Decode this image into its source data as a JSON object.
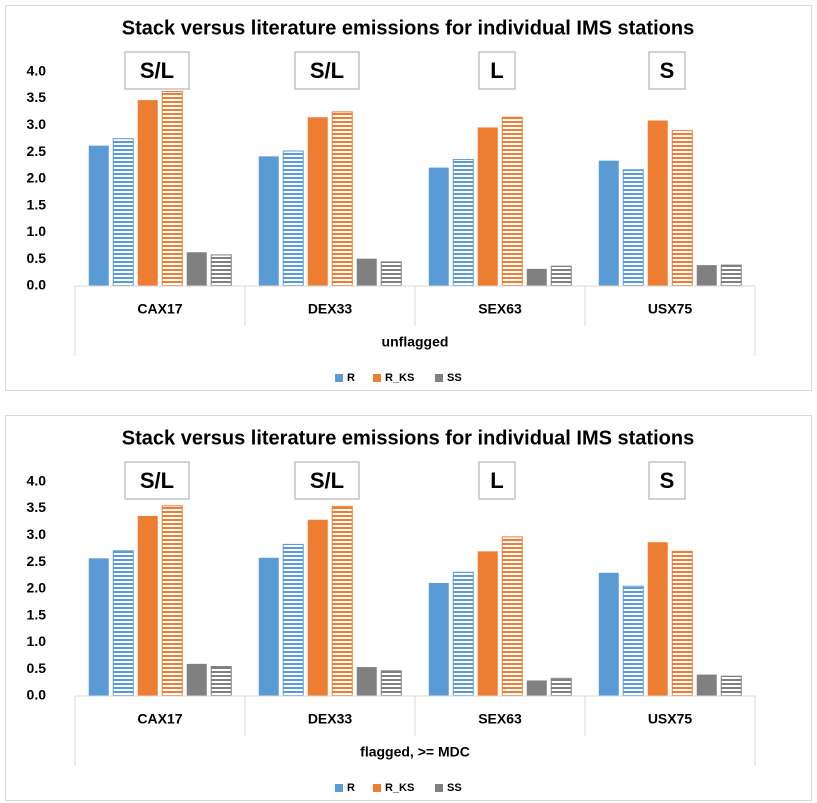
{
  "chart_data": [
    {
      "type": "bar",
      "title": "Stack versus literature emissions for individual IMS stations",
      "categories": [
        "CAX17",
        "DEX33",
        "SEX63",
        "USX75"
      ],
      "group_label": "unflagged",
      "series": [
        {
          "name": "R",
          "color": "#5b9bd5",
          "values": [
            2.62,
            2.42,
            2.21,
            2.34
          ]
        },
        {
          "color": "#5b9bd5",
          "pattern": "horizontal-stripes",
          "values": [
            2.75,
            2.52,
            2.36,
            2.17
          ]
        },
        {
          "name": "R_KS",
          "color": "#ed7d31",
          "values": [
            3.47,
            3.15,
            2.96,
            3.09
          ]
        },
        {
          "color": "#ed7d31",
          "pattern": "horizontal-stripes",
          "values": [
            3.63,
            3.25,
            3.15,
            2.9
          ]
        },
        {
          "name": "SS",
          "color": "#808080",
          "values": [
            0.63,
            0.51,
            0.32,
            0.39
          ]
        },
        {
          "color": "#808080",
          "pattern": "horizontal-stripes",
          "values": [
            0.58,
            0.45,
            0.37,
            0.39
          ]
        }
      ],
      "annotations": [
        {
          "text": "S/L",
          "color": "#ffc000"
        },
        {
          "text": "S/L",
          "color": "#ffc000"
        },
        {
          "text": "L",
          "color": "#c00000"
        },
        {
          "text": "S",
          "color": "#00b050"
        }
      ],
      "ylim": [
        0,
        4.2
      ],
      "yticks": [
        {
          "value": 0,
          "label": "0.0"
        },
        {
          "value": 0.5,
          "label": "0.5"
        },
        {
          "value": 1,
          "label": "1.0"
        },
        {
          "value": 1.5,
          "label": "1.5"
        },
        {
          "value": 2,
          "label": "2.0"
        },
        {
          "value": 2.5,
          "label": "2.5"
        },
        {
          "value": 3,
          "label": "3.0"
        },
        {
          "value": 3.5,
          "label": "3.5"
        },
        {
          "value": 4,
          "label": "4.0"
        }
      ],
      "grid": false,
      "legend": "bottom"
    },
    {
      "type": "bar",
      "title": "Stack versus literature emissions for individual IMS stations",
      "categories": [
        "CAX17",
        "DEX33",
        "SEX63",
        "USX75"
      ],
      "group_label": "flagged, >= MDC",
      "series": [
        {
          "name": "R",
          "color": "#5b9bd5",
          "values": [
            2.57,
            2.58,
            2.11,
            2.3
          ]
        },
        {
          "color": "#5b9bd5",
          "pattern": "horizontal-stripes",
          "values": [
            2.71,
            2.83,
            2.31,
            2.05
          ]
        },
        {
          "name": "R_KS",
          "color": "#ed7d31",
          "values": [
            3.36,
            3.29,
            2.7,
            2.87
          ]
        },
        {
          "color": "#ed7d31",
          "pattern": "horizontal-stripes",
          "values": [
            3.55,
            3.54,
            2.97,
            2.7
          ]
        },
        {
          "name": "SS",
          "color": "#808080",
          "values": [
            0.6,
            0.54,
            0.29,
            0.4
          ]
        },
        {
          "color": "#808080",
          "pattern": "horizontal-stripes",
          "values": [
            0.55,
            0.47,
            0.33,
            0.37
          ]
        }
      ],
      "annotations": [
        {
          "text": "S/L",
          "color": "#ffc000"
        },
        {
          "text": "S/L",
          "color": "#ffc000"
        },
        {
          "text": "L",
          "color": "#c00000"
        },
        {
          "text": "S",
          "color": "#00b050"
        }
      ],
      "ylim": [
        0,
        4.2
      ],
      "yticks": [
        {
          "value": 0,
          "label": "0.0"
        },
        {
          "value": 0.5,
          "label": "0.5"
        },
        {
          "value": 1,
          "label": "1.0"
        },
        {
          "value": 1.5,
          "label": "1.5"
        },
        {
          "value": 2,
          "label": "2.0"
        },
        {
          "value": 2.5,
          "label": "2.5"
        },
        {
          "value": 3,
          "label": "3.0"
        },
        {
          "value": 3.5,
          "label": "3.5"
        },
        {
          "value": 4,
          "label": "4.0"
        }
      ],
      "grid": false,
      "legend": "bottom"
    }
  ]
}
